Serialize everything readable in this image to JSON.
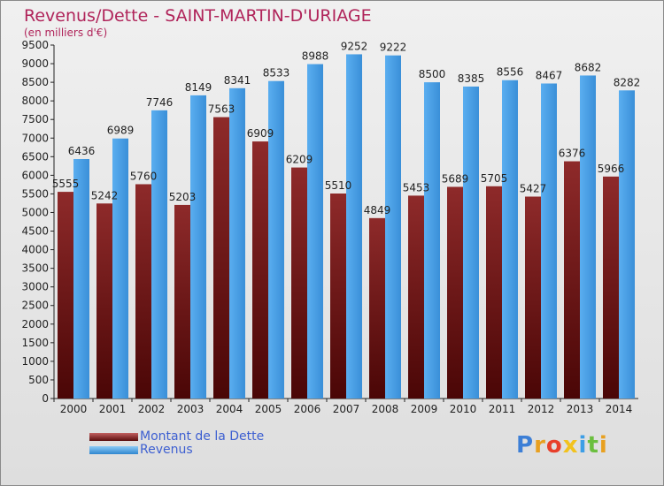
{
  "header": {
    "title": "Revenus/Dette - SAINT-MARTIN-D'URIAGE",
    "subtitle": "(en milliers d'€)"
  },
  "chart_data": {
    "type": "bar",
    "title": "Revenus/Dette - SAINT-MARTIN-D'URIAGE",
    "subtitle": "(en milliers d'€)",
    "categories": [
      "2000",
      "2001",
      "2002",
      "2003",
      "2004",
      "2005",
      "2006",
      "2007",
      "2008",
      "2009",
      "2010",
      "2011",
      "2012",
      "2013",
      "2014"
    ],
    "series": [
      {
        "name": "Montant de la Dette",
        "color": "#7a1f1f",
        "values": [
          5555,
          5242,
          5760,
          5203,
          7563,
          6909,
          6209,
          5510,
          4849,
          5453,
          5689,
          5705,
          5427,
          6376,
          5966
        ],
        "labels": [
          "5555",
          "5242",
          "5760",
          "5203",
          "7563",
          "6909",
          "6209",
          "5510",
          "4849",
          "5453",
          "5689",
          "5705",
          "5427",
          "6376",
          "5966"
        ]
      },
      {
        "name": "Revenus",
        "color": "#4fa3e6",
        "values": [
          6436,
          6989,
          7746,
          8149,
          8341,
          8533,
          8988,
          9252,
          9222,
          8500,
          8385,
          8556,
          8467,
          8682,
          8282
        ],
        "labels": [
          "6436",
          "6989",
          "7746",
          "8149",
          "8341",
          "8533",
          "8988",
          "9252",
          "9222",
          "8500",
          "8385",
          "8556",
          "8467",
          "8682",
          "8282"
        ]
      }
    ],
    "yticks": [
      "0",
      "500",
      "1000",
      "1500",
      "2000",
      "2500",
      "3000",
      "3500",
      "4000",
      "4500",
      "5000",
      "5500",
      "6000",
      "6500",
      "7000",
      "7500",
      "8000",
      "8500",
      "9000",
      "9500"
    ],
    "ylim": [
      0,
      9500
    ],
    "grid": false,
    "legend": "bottom-left"
  },
  "legend": {
    "items": [
      {
        "label": "Montant de la Dette",
        "color": "#7a1f1f"
      },
      {
        "label": "Revenus",
        "color": "#4fa3e6"
      }
    ]
  },
  "logo": {
    "text": "Proxiti",
    "letters": [
      "P",
      "r",
      "o",
      "x",
      "i",
      "t",
      "i"
    ],
    "colors": [
      "#3d7fd6",
      "#e8a020",
      "#e83f2a",
      "#f2c21e",
      "#3d9ee6",
      "#6bbf3f",
      "#e8a020"
    ]
  }
}
